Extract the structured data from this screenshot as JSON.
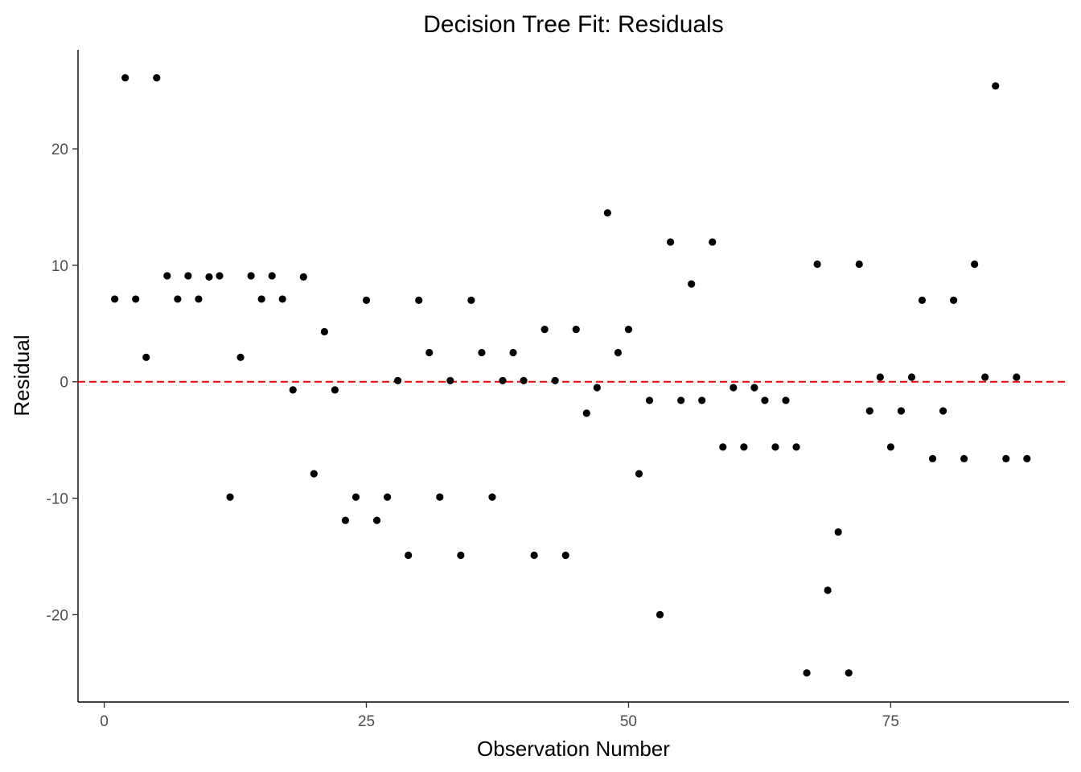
{
  "chart_data": {
    "type": "scatter",
    "title": "Decision Tree Fit: Residuals",
    "xlabel": "Observation Number",
    "ylabel": "Residual",
    "xlim": [
      -2.5,
      92
    ],
    "ylim": [
      -27.5,
      28.5
    ],
    "x_ticks": [
      0,
      25,
      50,
      75
    ],
    "y_ticks": [
      -20,
      -10,
      0,
      10,
      20
    ],
    "grid": false,
    "point_color": "#000000",
    "reference_line": {
      "y": 0,
      "color": "#ff0000",
      "style": "dashed"
    },
    "points": [
      {
        "x": 1,
        "y": 7.1
      },
      {
        "x": 2,
        "y": 26.1
      },
      {
        "x": 3,
        "y": 7.1
      },
      {
        "x": 4,
        "y": 2.1
      },
      {
        "x": 5,
        "y": 26.1
      },
      {
        "x": 6,
        "y": 9.1
      },
      {
        "x": 7,
        "y": 7.1
      },
      {
        "x": 8,
        "y": 9.1
      },
      {
        "x": 9,
        "y": 7.1
      },
      {
        "x": 10,
        "y": 9.0
      },
      {
        "x": 11,
        "y": 9.1
      },
      {
        "x": 12,
        "y": -9.9
      },
      {
        "x": 13,
        "y": 2.1
      },
      {
        "x": 14,
        "y": 9.1
      },
      {
        "x": 15,
        "y": 7.1
      },
      {
        "x": 16,
        "y": 9.1
      },
      {
        "x": 17,
        "y": 7.1
      },
      {
        "x": 18,
        "y": -0.7
      },
      {
        "x": 19,
        "y": 9.0
      },
      {
        "x": 20,
        "y": -7.9
      },
      {
        "x": 21,
        "y": 4.3
      },
      {
        "x": 22,
        "y": -0.7
      },
      {
        "x": 23,
        "y": -11.9
      },
      {
        "x": 24,
        "y": -9.9
      },
      {
        "x": 25,
        "y": 7.0
      },
      {
        "x": 26,
        "y": -11.9
      },
      {
        "x": 27,
        "y": -9.9
      },
      {
        "x": 28,
        "y": 0.1
      },
      {
        "x": 29,
        "y": -14.9
      },
      {
        "x": 30,
        "y": 7.0
      },
      {
        "x": 31,
        "y": 2.5
      },
      {
        "x": 32,
        "y": -9.9
      },
      {
        "x": 33,
        "y": 0.1
      },
      {
        "x": 34,
        "y": -14.9
      },
      {
        "x": 35,
        "y": 7.0
      },
      {
        "x": 36,
        "y": 2.5
      },
      {
        "x": 37,
        "y": -9.9
      },
      {
        "x": 38,
        "y": 0.1
      },
      {
        "x": 39,
        "y": 2.5
      },
      {
        "x": 40,
        "y": 0.1
      },
      {
        "x": 41,
        "y": -14.9
      },
      {
        "x": 42,
        "y": 4.5
      },
      {
        "x": 43,
        "y": 0.1
      },
      {
        "x": 44,
        "y": -14.9
      },
      {
        "x": 45,
        "y": 4.5
      },
      {
        "x": 46,
        "y": -2.7
      },
      {
        "x": 47,
        "y": -0.5
      },
      {
        "x": 48,
        "y": 14.5
      },
      {
        "x": 49,
        "y": 2.5
      },
      {
        "x": 50,
        "y": 4.5
      },
      {
        "x": 51,
        "y": -7.9
      },
      {
        "x": 52,
        "y": -1.6
      },
      {
        "x": 53,
        "y": -20.0
      },
      {
        "x": 54,
        "y": 12.0
      },
      {
        "x": 55,
        "y": -1.6
      },
      {
        "x": 56,
        "y": 8.4
      },
      {
        "x": 57,
        "y": -1.6
      },
      {
        "x": 58,
        "y": 12.0
      },
      {
        "x": 59,
        "y": -5.6
      },
      {
        "x": 60,
        "y": -0.5
      },
      {
        "x": 61,
        "y": -5.6
      },
      {
        "x": 62,
        "y": -0.5
      },
      {
        "x": 63,
        "y": -1.6
      },
      {
        "x": 64,
        "y": -5.6
      },
      {
        "x": 65,
        "y": -1.6
      },
      {
        "x": 66,
        "y": -5.6
      },
      {
        "x": 67,
        "y": -25.0
      },
      {
        "x": 68,
        "y": 10.1
      },
      {
        "x": 69,
        "y": -17.9
      },
      {
        "x": 70,
        "y": -12.9
      },
      {
        "x": 71,
        "y": -25.0
      },
      {
        "x": 72,
        "y": 10.1
      },
      {
        "x": 73,
        "y": -2.5
      },
      {
        "x": 74,
        "y": 0.4
      },
      {
        "x": 75,
        "y": -5.6
      },
      {
        "x": 76,
        "y": -2.5
      },
      {
        "x": 77,
        "y": 0.4
      },
      {
        "x": 78,
        "y": 7.0
      },
      {
        "x": 79,
        "y": -6.6
      },
      {
        "x": 80,
        "y": -2.5
      },
      {
        "x": 81,
        "y": 7.0
      },
      {
        "x": 82,
        "y": -6.6
      },
      {
        "x": 83,
        "y": 10.1
      },
      {
        "x": 84,
        "y": 0.4
      },
      {
        "x": 85,
        "y": 25.4
      },
      {
        "x": 86,
        "y": -6.6
      },
      {
        "x": 87,
        "y": 0.4
      },
      {
        "x": 88,
        "y": -6.6
      }
    ]
  }
}
